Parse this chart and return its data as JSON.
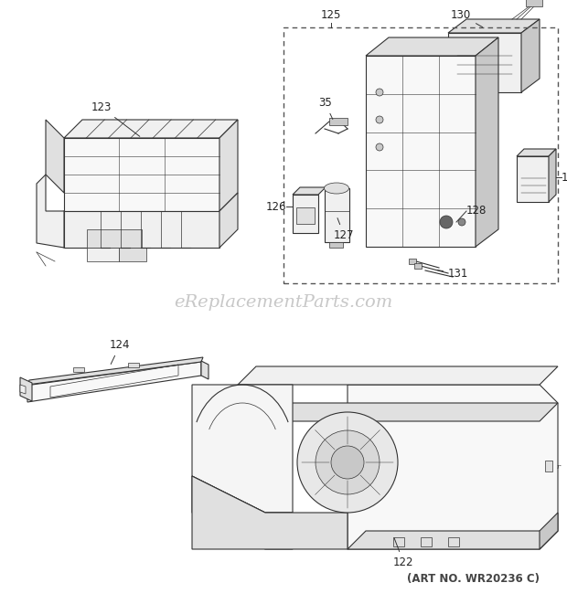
{
  "background_color": "#ffffff",
  "watermark_text": "eReplacementParts.com",
  "watermark_color": "#c8c8c8",
  "watermark_fontsize": 14,
  "art_no_text": "(ART NO. WR20236 C)",
  "art_no_color": "#444444",
  "art_no_fontsize": 8.5,
  "label_fontsize": 8.5,
  "label_color": "#222222",
  "line_color": "#333333",
  "fill_light": "#f0f0f0",
  "fill_medium": "#e0e0e0",
  "fill_dark": "#c8c8c8",
  "dashed_box_color": "#555555",
  "figw": 6.2,
  "figh": 6.61,
  "dpi": 100
}
